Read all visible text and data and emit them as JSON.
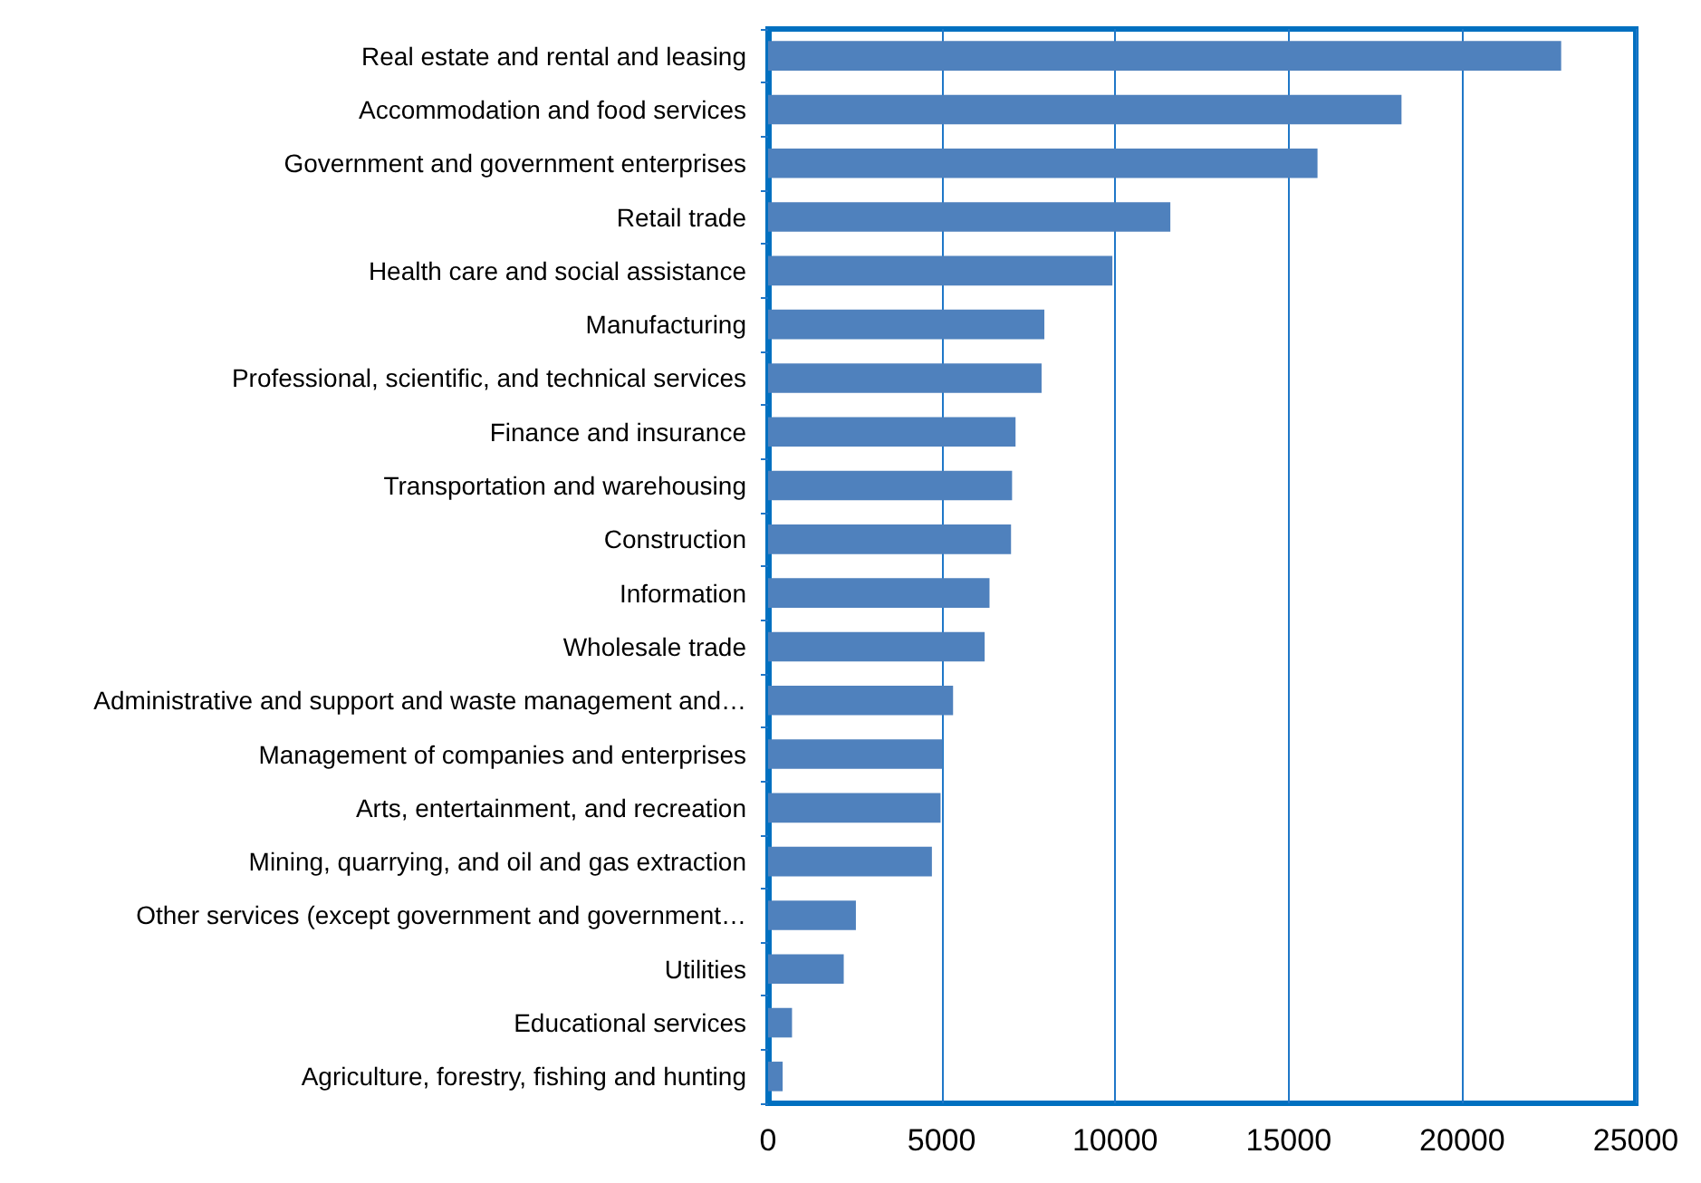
{
  "chart_data": {
    "type": "bar",
    "orientation": "horizontal",
    "categories": [
      "Real estate and rental and leasing",
      "Accommodation and food services",
      "Government and government enterprises",
      "Retail trade",
      "Health care and social assistance",
      "Manufacturing",
      "Professional, scientific, and technical services",
      "Finance and insurance",
      "Transportation and warehousing",
      "Construction",
      "Information",
      "Wholesale trade",
      "Administrative and support and waste management and…",
      "Management of companies and enterprises",
      "Arts, entertainment, and recreation",
      "Mining, quarrying, and oil and gas extraction",
      "Other services (except government and government…",
      "Utilities",
      "Educational services",
      "Agriculture, forestry, fishing and hunting"
    ],
    "values": [
      22850,
      18250,
      15830,
      11590,
      9920,
      7960,
      7880,
      7130,
      7030,
      7000,
      6380,
      6240,
      5330,
      5030,
      4970,
      4720,
      2530,
      2180,
      690,
      420
    ],
    "color": "#4f81bd",
    "xlim": [
      0,
      25000
    ],
    "xticks": [
      0,
      5000,
      10000,
      15000,
      20000,
      25000
    ],
    "grid": "x"
  }
}
